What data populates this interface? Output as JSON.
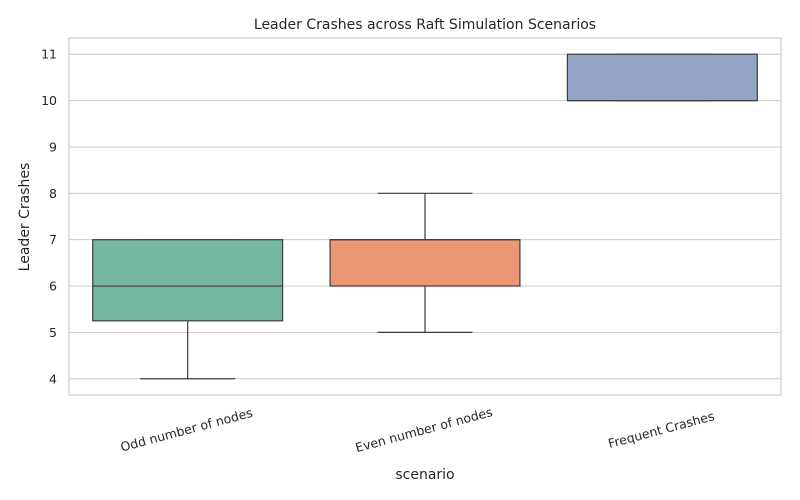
{
  "chart_data": {
    "type": "box",
    "title": "Leader Crashes across Raft Simulation Scenarios",
    "xlabel": "scenario",
    "ylabel": "Leader Crashes",
    "ylim": [
      3.65,
      11.35
    ],
    "yticks": [
      4,
      5,
      6,
      7,
      8,
      9,
      10,
      11
    ],
    "grid": true,
    "categories": [
      "Odd number of nodes",
      "Even number of nodes",
      "Frequent Crashes"
    ],
    "boxes": [
      {
        "category": "Odd number of nodes",
        "whisker_low": 4,
        "q1": 5.25,
        "median": 6,
        "q3": 7,
        "whisker_high": 7,
        "color": "#75b7a2"
      },
      {
        "category": "Even number of nodes",
        "whisker_low": 5,
        "q1": 6,
        "median": 7,
        "q3": 7,
        "whisker_high": 8,
        "color": "#eb9675"
      },
      {
        "category": "Frequent Crashes",
        "whisker_low": 10,
        "q1": 10,
        "median": 10,
        "q3": 11,
        "whisker_high": 11,
        "color": "#93a4c6"
      }
    ],
    "edge_color": "#3d3d3d"
  }
}
